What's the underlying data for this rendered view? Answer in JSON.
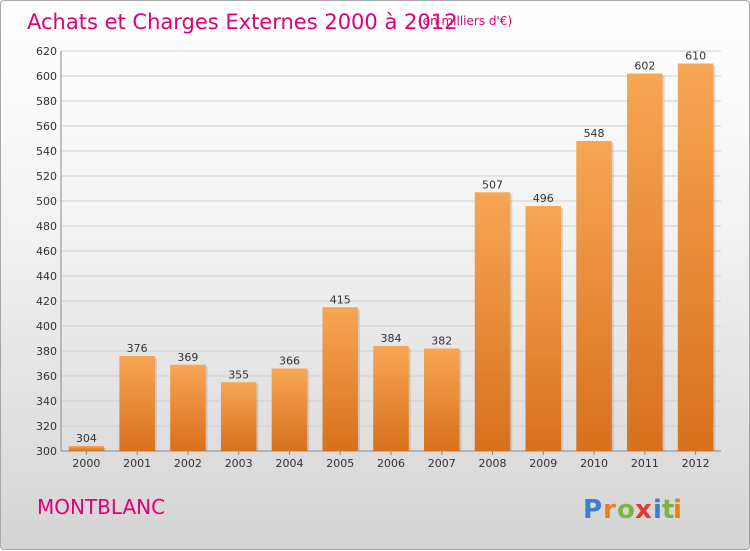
{
  "chart_data": {
    "type": "bar",
    "title": "Achats et Charges Externes 2000 à 2012",
    "subtitle": "(en milliers d'€)",
    "categories": [
      "2000",
      "2001",
      "2002",
      "2003",
      "2004",
      "2005",
      "2006",
      "2007",
      "2008",
      "2009",
      "2010",
      "2011",
      "2012"
    ],
    "values": [
      304,
      376,
      369,
      355,
      366,
      415,
      384,
      382,
      507,
      496,
      548,
      602,
      610
    ],
    "ylim": [
      300,
      620
    ],
    "yticks": [
      300,
      320,
      340,
      360,
      380,
      400,
      420,
      440,
      460,
      480,
      500,
      520,
      540,
      560,
      580,
      600,
      620
    ],
    "grid": true,
    "bar_color_top": "#f7a654",
    "bar_color_bottom": "#d8701c"
  },
  "commune": "MONTBLANC",
  "logo": {
    "letters": [
      "P",
      "r",
      "o",
      "x",
      "i",
      "t",
      "i"
    ],
    "colors": [
      "#3a7fd0",
      "#e67e22",
      "#7cb342",
      "#e53935",
      "#3a7fd0",
      "#7cb342",
      "#e67e22"
    ]
  }
}
